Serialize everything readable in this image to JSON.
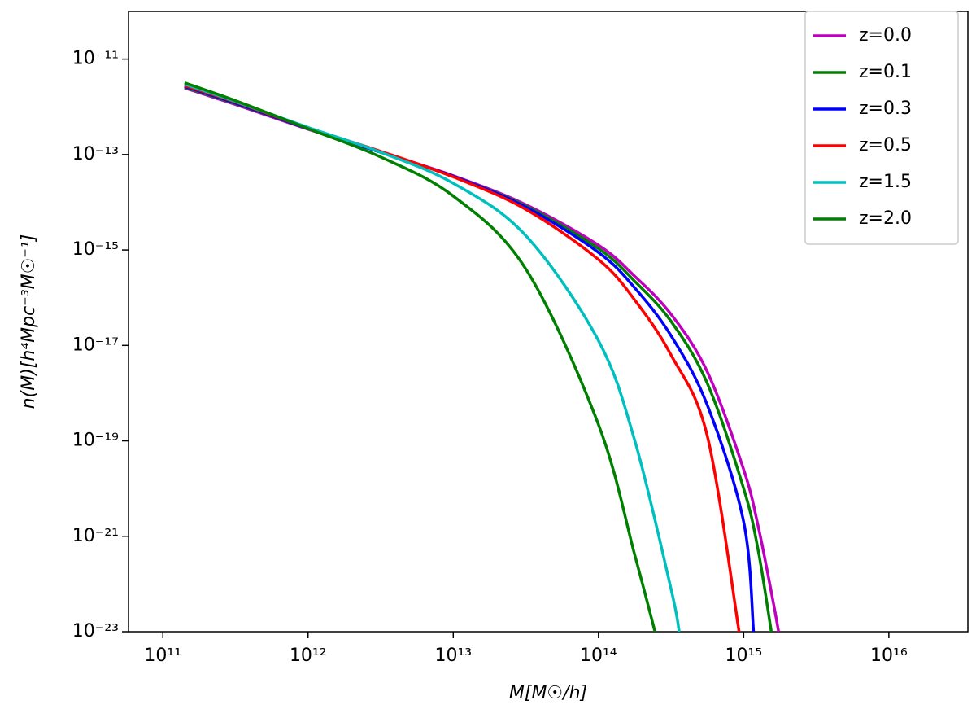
{
  "chart_data": {
    "type": "line",
    "xlabel": "M[M☉/h]",
    "ylabel": "n(M)[h⁴Mpc⁻³M☉⁻¹]",
    "xscale": "log",
    "yscale": "log",
    "xlim": [
      58000000000.0,
      3.5e+16
    ],
    "ylim": [
      1e-23,
      1e-10
    ],
    "xticks": [
      {
        "value": 100000000000.0,
        "label": "10¹¹"
      },
      {
        "value": 1000000000000.0,
        "label": "10¹²"
      },
      {
        "value": 10000000000000.0,
        "label": "10¹³"
      },
      {
        "value": 100000000000000.0,
        "label": "10¹⁴"
      },
      {
        "value": 1000000000000000.0,
        "label": "10¹⁵"
      },
      {
        "value": 1e+16,
        "label": "10¹⁶"
      }
    ],
    "yticks": [
      {
        "value": 1e-11,
        "label": "10⁻¹¹"
      },
      {
        "value": 1e-13,
        "label": "10⁻¹³"
      },
      {
        "value": 1e-15,
        "label": "10⁻¹⁵"
      },
      {
        "value": 1e-17,
        "label": "10⁻¹⁷"
      },
      {
        "value": 1e-19,
        "label": "10⁻¹⁹"
      },
      {
        "value": 1e-21,
        "label": "10⁻²¹"
      },
      {
        "value": 1e-23,
        "label": "10⁻²³"
      }
    ],
    "legend": "upper right",
    "series": [
      {
        "name": "z=0.0",
        "color": "#bf00bf",
        "x": [
          141000000000.0,
          316000000000.0,
          1000000000000.0,
          3160000000000.0,
          10000000000000.0,
          31600000000000.0,
          100000000000000.0,
          178000000000000.0,
          316000000000000.0,
          562000000000000.0,
          1000000000000000.0,
          1260000000000000.0,
          1580000000000000.0,
          1740000000000000.0
        ],
        "values": [
          2.5e-12,
          1.12e-12,
          3.4e-13,
          1.12e-13,
          3.6e-14,
          8.9e-15,
          1.26e-15,
          2.8e-16,
          4.5e-17,
          2.8e-18,
          2.5e-20,
          1.6e-21,
          5e-23,
          1e-23
        ]
      },
      {
        "name": "z=0.1",
        "color": "#008000",
        "x": [
          141000000000.0,
          316000000000.0,
          1000000000000.0,
          3160000000000.0,
          10000000000000.0,
          31600000000000.0,
          100000000000000.0,
          178000000000000.0,
          316000000000000.0,
          562000000000000.0,
          1000000000000000.0,
          1260000000000000.0,
          1550000000000000.0
        ],
        "values": [
          2.6e-12,
          1.17e-12,
          3.5e-13,
          1.12e-13,
          3.5e-14,
          8.3e-15,
          1.07e-15,
          2.2e-16,
          3.2e-17,
          1.6e-18,
          1e-20,
          5e-22,
          1e-23
        ]
      },
      {
        "name": "z=0.3",
        "color": "#0000ff",
        "x": [
          141000000000.0,
          316000000000.0,
          1000000000000.0,
          3160000000000.0,
          10000000000000.0,
          31600000000000.0,
          100000000000000.0,
          178000000000000.0,
          316000000000000.0,
          562000000000000.0,
          1000000000000000.0,
          1170000000000000.0
        ],
        "values": [
          2.7e-12,
          1.2e-12,
          3.5e-13,
          1.12e-13,
          3.5e-14,
          7.9e-15,
          8.9e-16,
          1.6e-16,
          1.6e-17,
          5.6e-19,
          2e-21,
          1e-23
        ]
      },
      {
        "name": "z=0.5",
        "color": "#ff0000",
        "x": [
          141000000000.0,
          316000000000.0,
          1000000000000.0,
          3160000000000.0,
          10000000000000.0,
          31600000000000.0,
          100000000000000.0,
          178000000000000.0,
          316000000000000.0,
          562000000000000.0,
          930000000000000.0
        ],
        "values": [
          2.8e-12,
          1.26e-12,
          3.6e-13,
          1.17e-13,
          3.4e-14,
          7.1e-15,
          6.3e-16,
          8.9e-17,
          6.3e-18,
          1.26e-19,
          1e-23
        ]
      },
      {
        "name": "z=1.5",
        "color": "#00bfbf",
        "x": [
          141000000000.0,
          316000000000.0,
          1000000000000.0,
          3160000000000.0,
          10000000000000.0,
          31600000000000.0,
          100000000000000.0,
          178000000000000.0,
          316000000000000.0,
          360000000000000.0
        ],
        "values": [
          3e-12,
          1.3e-12,
          3.7e-13,
          1.12e-13,
          2.5e-14,
          2e-15,
          1.26e-17,
          1e-19,
          7.9e-23,
          1e-23
        ]
      },
      {
        "name": "z=2.0",
        "color": "#008000",
        "x": [
          141000000000.0,
          316000000000.0,
          1000000000000.0,
          3160000000000.0,
          10000000000000.0,
          31600000000000.0,
          100000000000000.0,
          178000000000000.0,
          245000000000000.0
        ],
        "values": [
          3.2e-12,
          1.35e-12,
          3.5e-13,
          8.9e-14,
          1.35e-14,
          4e-16,
          2.2e-19,
          4e-22,
          1e-23
        ]
      }
    ]
  }
}
